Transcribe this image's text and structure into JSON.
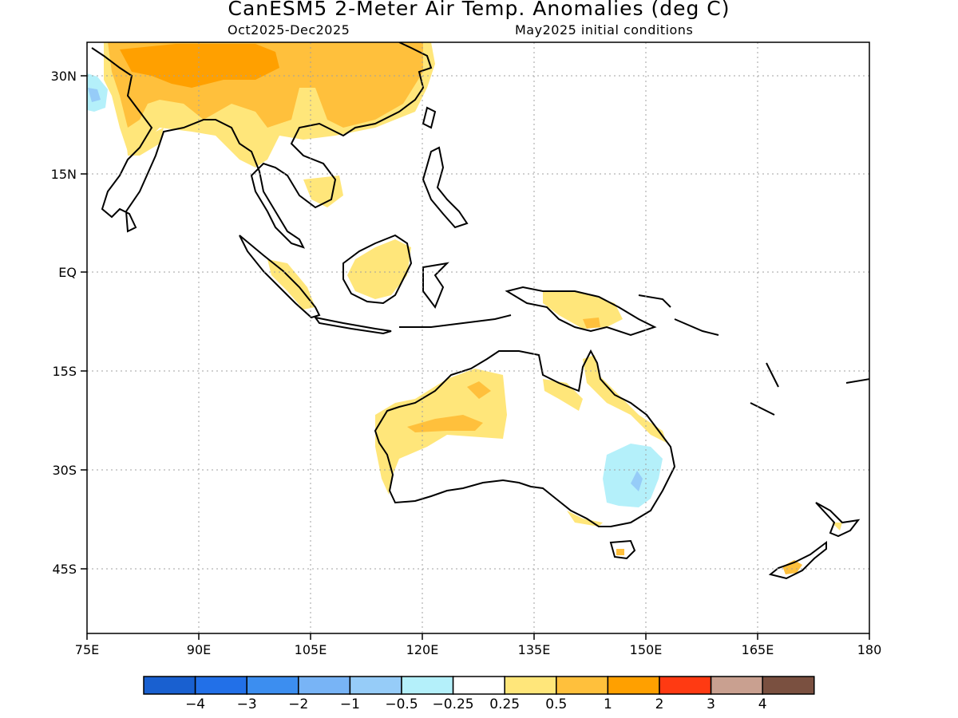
{
  "title": "CanESM5 2-Meter Air Temp. Anomalies (deg C)",
  "period": "Oct2025-Dec2025",
  "init": "May2025 initial conditions",
  "axes": {
    "lon_ticks": [
      "75E",
      "90E",
      "105E",
      "120E",
      "135E",
      "150E",
      "165E",
      "180"
    ],
    "lat_ticks": [
      "30N",
      "15N",
      "EQ",
      "15S",
      "30S",
      "45S"
    ]
  },
  "colorbar": {
    "colors": [
      "#1960d0",
      "#2270e8",
      "#3c8ef0",
      "#78b4f6",
      "#96ccf8",
      "#b4f0fa",
      "#ffffff",
      "#ffe67a",
      "#ffc03c",
      "#ffa000",
      "#ff3a12",
      "#c9a090",
      "#7a5040"
    ],
    "labels": [
      "-4",
      "-3",
      "-2",
      "-1",
      "-0.5",
      "-0.25",
      "0.25",
      "0.5",
      "1",
      "2",
      "3",
      "4"
    ]
  }
}
